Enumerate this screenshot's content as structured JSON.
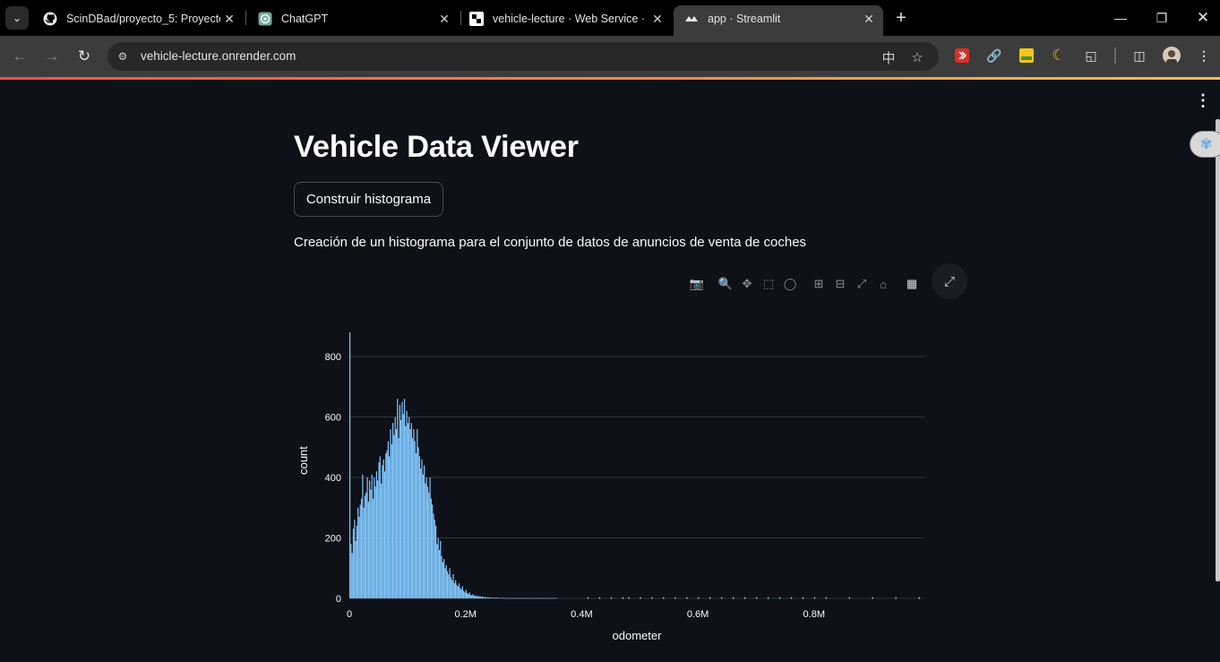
{
  "browser": {
    "tabs": [
      {
        "title": "ScinDBad/proyecto_5: Proyecto",
        "icon": "github-icon",
        "active": false
      },
      {
        "title": "ChatGPT",
        "icon": "chatgpt-icon",
        "active": false
      },
      {
        "title": "vehicle-lecture · Web Service ·",
        "icon": "render-icon",
        "active": false
      },
      {
        "title": "app · Streamlit",
        "icon": "streamlit-icon",
        "active": true
      }
    ],
    "url": "vehicle-lecture.onrender.com",
    "accent_colors": {
      "streamlit_top_bar_start": "#ff4b4b",
      "streamlit_top_bar_end": "#ffbd45"
    }
  },
  "app": {
    "title": "Vehicle Data Viewer",
    "button_label": "Construir histograma",
    "description": "Creación de un histograma para el conjunto de datos de anuncios de venta de coches",
    "modebar_icons": [
      "camera-icon",
      "zoom-icon",
      "pan-icon",
      "box-select-icon",
      "lasso-icon",
      "zoom-in-icon",
      "zoom-out-icon",
      "autoscale-icon",
      "reset-axes-icon",
      "plotly-logo-icon"
    ],
    "bar_color": "#83c9ff"
  },
  "chart_data": {
    "type": "bar",
    "xlabel": "odometer",
    "ylabel": "count",
    "x_ticks": [
      0,
      200000,
      400000,
      600000,
      800000
    ],
    "x_tick_labels": [
      "0",
      "0.2M",
      "0.4M",
      "0.6M",
      "0.8M"
    ],
    "y_ticks": [
      0,
      200,
      400,
      600,
      800
    ],
    "y_tick_labels": [
      "0",
      "200",
      "400",
      "600",
      "800"
    ],
    "xlim": [
      0,
      990000
    ],
    "ylim": [
      0,
      880
    ],
    "grid": true,
    "bin_width": 2000,
    "bin_starts_approx": [
      0,
      2000,
      4000,
      6000,
      8000,
      10000,
      12000,
      14000,
      16000,
      18000,
      20000,
      22000,
      24000,
      26000,
      28000,
      30000,
      32000,
      34000,
      36000,
      38000,
      40000,
      42000,
      44000,
      46000,
      48000,
      50000,
      52000,
      54000,
      56000,
      58000,
      60000,
      62000,
      64000,
      66000,
      68000,
      70000,
      72000,
      74000,
      76000,
      78000,
      80000,
      82000,
      84000,
      86000,
      88000,
      90000,
      92000,
      94000,
      96000,
      98000,
      100000,
      102000,
      104000,
      106000,
      108000,
      110000,
      112000,
      114000,
      116000,
      118000,
      120000,
      122000,
      124000,
      126000,
      128000,
      130000,
      132000,
      134000,
      136000,
      138000,
      140000,
      142000,
      144000,
      146000,
      148000,
      150000,
      152000,
      154000,
      156000,
      158000,
      160000,
      162000,
      164000,
      166000,
      168000,
      170000,
      172000,
      174000,
      176000,
      178000,
      180000,
      182000,
      184000,
      186000,
      188000,
      190000,
      192000,
      194000,
      196000,
      198000,
      200000,
      202000,
      204000,
      206000,
      208000,
      210000,
      212000,
      214000,
      216000,
      218000,
      220000,
      222000,
      224000,
      226000,
      228000,
      230000,
      232000,
      234000,
      236000,
      238000,
      240000,
      242000,
      244000,
      246000,
      248000,
      250000,
      252000,
      254000,
      256000,
      258000,
      260000,
      262000,
      264000,
      266000,
      268000,
      270000,
      272000,
      274000,
      276000,
      278000,
      280000,
      282000,
      284000,
      286000,
      288000,
      290000,
      292000,
      294000,
      296000,
      298000,
      300000,
      302000,
      304000,
      306000,
      308000,
      310000,
      312000,
      314000,
      316000,
      318000,
      320000,
      322000,
      324000,
      326000,
      328000,
      330000,
      332000,
      334000,
      336000,
      338000,
      340000,
      342000,
      344000,
      346000,
      348000,
      350000,
      352000,
      354000,
      356000,
      358000,
      360000
    ],
    "values_approx": [
      880,
      180,
      150,
      230,
      260,
      190,
      240,
      300,
      270,
      310,
      330,
      410,
      300,
      340,
      350,
      400,
      320,
      390,
      360,
      410,
      330,
      400,
      370,
      420,
      390,
      450,
      470,
      380,
      440,
      460,
      420,
      480,
      490,
      520,
      470,
      560,
      510,
      580,
      540,
      600,
      560,
      660,
      530,
      640,
      590,
      650,
      610,
      660,
      570,
      620,
      580,
      600,
      560,
      580,
      530,
      560,
      520,
      480,
      560,
      500,
      470,
      430,
      460,
      410,
      440,
      380,
      400,
      370,
      350,
      400,
      330,
      310,
      280,
      260,
      240,
      180,
      200,
      160,
      190,
      140,
      120,
      130,
      100,
      110,
      90,
      80,
      100,
      70,
      60,
      80,
      50,
      60,
      45,
      40,
      50,
      35,
      30,
      40,
      25,
      20,
      28,
      18,
      15,
      20,
      12,
      10,
      14,
      9,
      8,
      10,
      7,
      6,
      8,
      5,
      6,
      4,
      5,
      4,
      3,
      4,
      3,
      3,
      2,
      3,
      2,
      2,
      3,
      2,
      2,
      1,
      2,
      1,
      2,
      1,
      1,
      2,
      1,
      1,
      1,
      1,
      1,
      1,
      1,
      1,
      1,
      1,
      1,
      1,
      1,
      1,
      1,
      1,
      1,
      1,
      1,
      1,
      1,
      1,
      1,
      1,
      1,
      1,
      1,
      1,
      1,
      1,
      1,
      1,
      1,
      1,
      1,
      1,
      1,
      1,
      1,
      1,
      1,
      1,
      1
    ],
    "sparse_tail_note_values": [
      1,
      1,
      1,
      1,
      1,
      1,
      1,
      1,
      1,
      1,
      1,
      1,
      1,
      1,
      1,
      1,
      1,
      1,
      1,
      1,
      1,
      1,
      1,
      1,
      1,
      1
    ],
    "sparse_tail_x_approx": [
      410000,
      430000,
      450000,
      470000,
      480000,
      500000,
      520000,
      540000,
      560000,
      580000,
      600000,
      620000,
      640000,
      660000,
      680000,
      700000,
      720000,
      740000,
      760000,
      780000,
      800000,
      820000,
      860000,
      900000,
      940000,
      980000
    ]
  }
}
